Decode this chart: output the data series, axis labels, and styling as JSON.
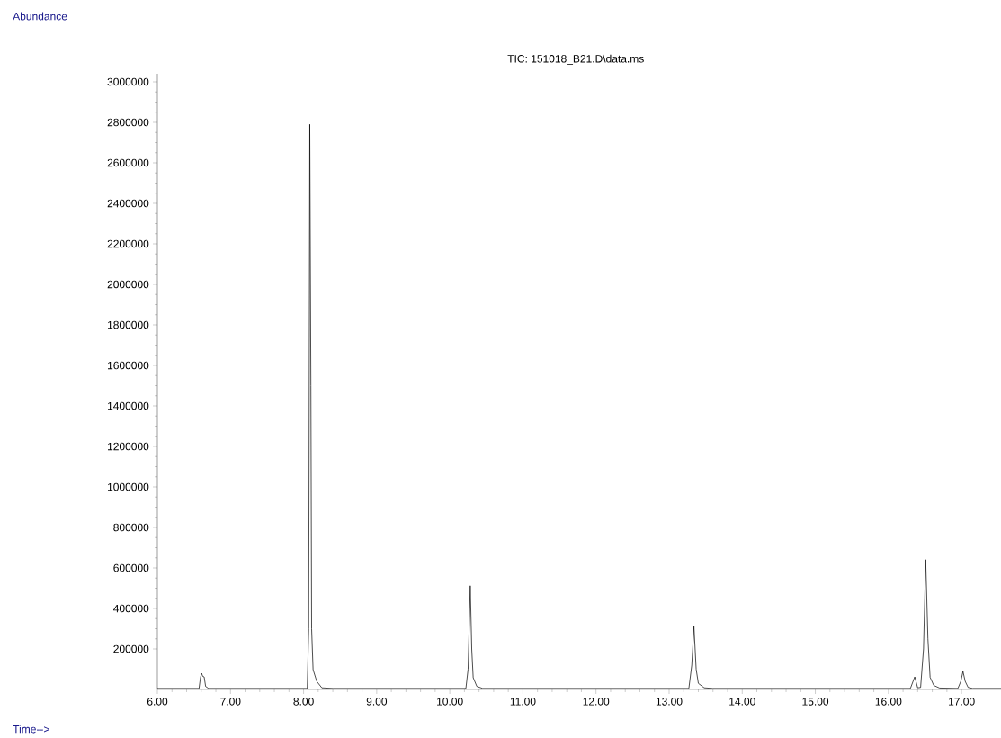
{
  "chart_data": {
    "type": "line",
    "title": "TIC: 151018_B21.D\\data.ms",
    "annotations": [
      "Abundance",
      "Time-->"
    ],
    "color": "#000000",
    "marker": "none",
    "line_style": "solid",
    "grid": false,
    "x": [
      6.0,
      6.57,
      6.59,
      6.605,
      6.62,
      6.64,
      6.66,
      6.7,
      8.05,
      8.07,
      8.085,
      8.1,
      8.11,
      8.13,
      8.18,
      8.25,
      8.4,
      10.22,
      10.25,
      10.28,
      10.3,
      10.32,
      10.37,
      10.45,
      13.27,
      13.31,
      13.34,
      13.37,
      13.4,
      13.48,
      13.6,
      16.3,
      16.36,
      16.4,
      16.44,
      16.48,
      16.51,
      16.54,
      16.57,
      16.62,
      16.7,
      16.95,
      16.99,
      17.02,
      17.05,
      17.09,
      17.15,
      17.54
    ],
    "values": [
      5000,
      5000,
      60000,
      80000,
      65000,
      62000,
      15000,
      5000,
      5000,
      300000,
      2790000,
      1500000,
      300000,
      98000,
      40000,
      8000,
      5000,
      5000,
      100000,
      512000,
      200000,
      58000,
      15000,
      5000,
      5000,
      120000,
      311000,
      100000,
      30000,
      8000,
      5000,
      5000,
      62000,
      8000,
      10000,
      200000,
      641000,
      250000,
      60000,
      20000,
      7000,
      5000,
      40000,
      89000,
      40000,
      10000,
      5000,
      5000
    ],
    "xlim": [
      6.0,
      17.54
    ],
    "ylim": [
      0,
      3040000
    ],
    "xticks": [
      {
        "value": 6,
        "label": "6.00"
      },
      {
        "value": 7,
        "label": "7.00"
      },
      {
        "value": 8,
        "label": "8.00"
      },
      {
        "value": 9,
        "label": "9.00"
      },
      {
        "value": 10,
        "label": "10.00"
      },
      {
        "value": 11,
        "label": "11.00"
      },
      {
        "value": 12,
        "label": "12.00"
      },
      {
        "value": 13,
        "label": "13.00"
      },
      {
        "value": 14,
        "label": "14.00"
      },
      {
        "value": 15,
        "label": "15.00"
      },
      {
        "value": 16,
        "label": "16.00"
      },
      {
        "value": 17,
        "label": "17.00"
      }
    ],
    "yticks": [
      200000,
      400000,
      600000,
      800000,
      1000000,
      1200000,
      1400000,
      1600000,
      1800000,
      2000000,
      2200000,
      2400000,
      2600000,
      2800000,
      3000000
    ]
  }
}
